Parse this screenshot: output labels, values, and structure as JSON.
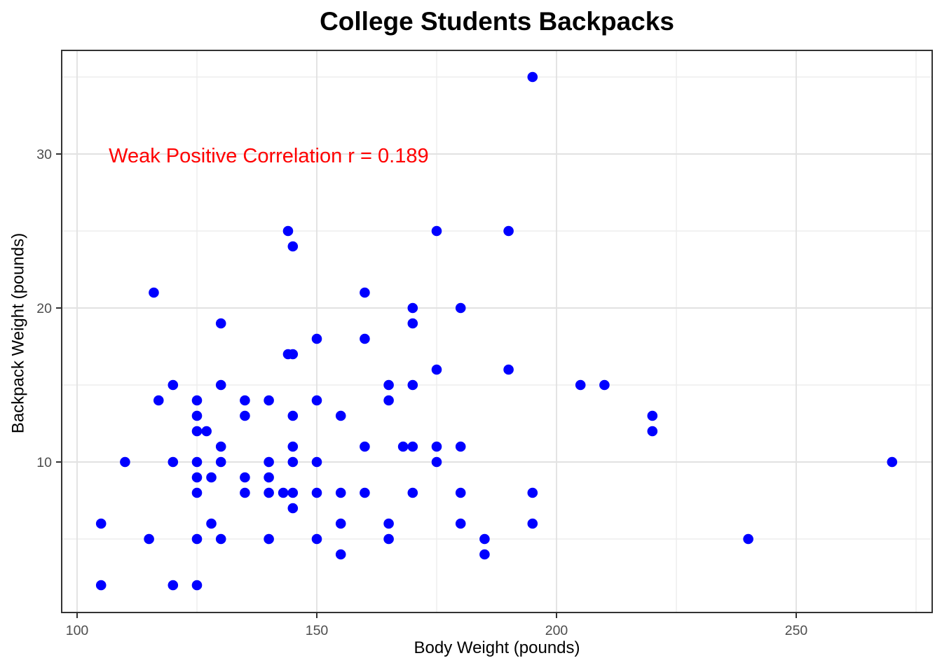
{
  "header": {
    "title": "College Students Backpacks"
  },
  "style": {
    "background": "#FFFFFF",
    "point_color": "#0000FF",
    "annotation_color": "#FF0000",
    "grid_major_color": "#E2E2E2",
    "grid_minor_color": "#EDEDED",
    "panel_border_color": "#333333",
    "tick_mark_color": "#333333",
    "tick_label_color": "#4D4D4D",
    "axis_title_color": "#000000"
  },
  "chart_data": {
    "type": "scatter",
    "title": "College Students Backpacks",
    "xlabel": "Body Weight (pounds)",
    "ylabel": "Backpack Weight (pounds)",
    "xlim": [
      96.8,
      278.4
    ],
    "ylim": [
      0.2,
      36.7
    ],
    "x_major_ticks": [
      100,
      150,
      200,
      250
    ],
    "x_minor_ticks": [
      125,
      175,
      225,
      275
    ],
    "y_major_ticks": [
      10,
      20,
      30
    ],
    "y_minor_ticks": [
      5,
      15,
      25,
      35
    ],
    "grid": true,
    "legend_position": "none",
    "annotation": {
      "text": "Weak Positive Correlation r = 0.189",
      "x": 106.6,
      "y": 29.9,
      "color": "#FF0000"
    },
    "series_name": "students",
    "points": [
      [
        105,
        2
      ],
      [
        105,
        6
      ],
      [
        110,
        10
      ],
      [
        115,
        5
      ],
      [
        116,
        21
      ],
      [
        117,
        14
      ],
      [
        120,
        2
      ],
      [
        120,
        10
      ],
      [
        120,
        15
      ],
      [
        125,
        2
      ],
      [
        125,
        5
      ],
      [
        125,
        8
      ],
      [
        125,
        9
      ],
      [
        125,
        10
      ],
      [
        125,
        12
      ],
      [
        125,
        13
      ],
      [
        125,
        14
      ],
      [
        127,
        12
      ],
      [
        128,
        6
      ],
      [
        128,
        9
      ],
      [
        130,
        5
      ],
      [
        130,
        10
      ],
      [
        130,
        11
      ],
      [
        130,
        15
      ],
      [
        130,
        19
      ],
      [
        135,
        8
      ],
      [
        135,
        9
      ],
      [
        135,
        13
      ],
      [
        135,
        14
      ],
      [
        140,
        5
      ],
      [
        140,
        8
      ],
      [
        140,
        9
      ],
      [
        140,
        10
      ],
      [
        140,
        14
      ],
      [
        143,
        8
      ],
      [
        144,
        17
      ],
      [
        144,
        25
      ],
      [
        145,
        7
      ],
      [
        145,
        8
      ],
      [
        145,
        10
      ],
      [
        145,
        11
      ],
      [
        145,
        13
      ],
      [
        145,
        17
      ],
      [
        145,
        24
      ],
      [
        150,
        5
      ],
      [
        150,
        8
      ],
      [
        150,
        10
      ],
      [
        150,
        14
      ],
      [
        150,
        18
      ],
      [
        155,
        4
      ],
      [
        155,
        6
      ],
      [
        155,
        8
      ],
      [
        155,
        13
      ],
      [
        160,
        8
      ],
      [
        160,
        11
      ],
      [
        160,
        18
      ],
      [
        160,
        21
      ],
      [
        165,
        5
      ],
      [
        165,
        6
      ],
      [
        165,
        14
      ],
      [
        165,
        15
      ],
      [
        168,
        11
      ],
      [
        170,
        8
      ],
      [
        170,
        11
      ],
      [
        170,
        15
      ],
      [
        170,
        19
      ],
      [
        170,
        20
      ],
      [
        175,
        10
      ],
      [
        175,
        11
      ],
      [
        175,
        16
      ],
      [
        175,
        25
      ],
      [
        180,
        6
      ],
      [
        180,
        8
      ],
      [
        180,
        11
      ],
      [
        180,
        20
      ],
      [
        185,
        4
      ],
      [
        185,
        5
      ],
      [
        190,
        16
      ],
      [
        190,
        25
      ],
      [
        195,
        6
      ],
      [
        195,
        8
      ],
      [
        195,
        35
      ],
      [
        205,
        15
      ],
      [
        210,
        15
      ],
      [
        220,
        12
      ],
      [
        220,
        13
      ],
      [
        240,
        5
      ],
      [
        270,
        10
      ]
    ]
  }
}
